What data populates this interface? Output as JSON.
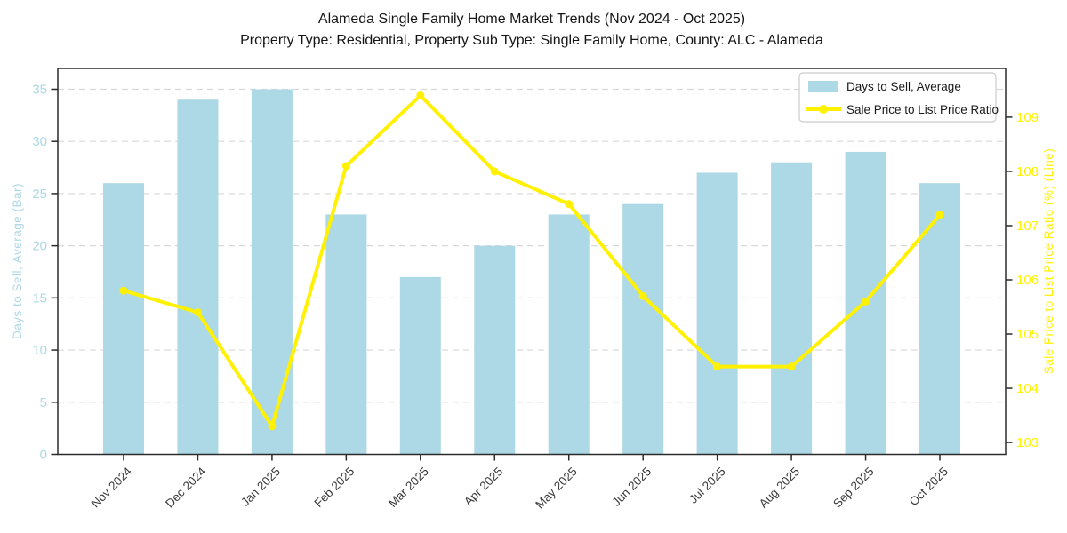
{
  "title": {
    "line1": "Alameda Single Family Home Market Trends (Nov 2024 - Oct 2025)",
    "line2": "Property Type: Residential, Property Sub Type: Single Family Home, County: ALC - Alameda"
  },
  "legend": {
    "position": "top-right",
    "items": [
      {
        "label": "Days to Sell, Average",
        "marker": "bar-swatch"
      },
      {
        "label": "Sale Price to List Price Ratio",
        "marker": "line-marker"
      }
    ]
  },
  "colors": {
    "bar": "#ADD8E6",
    "line": "#FFF100",
    "grid": "#D8D8D8",
    "spine": "#2B2B2B",
    "left_text": "#ADD8E6",
    "right_text": "#FFF100",
    "xtick_text": "#3A3A3A",
    "title_text": "#151515",
    "legend_border": "#CCCCCC"
  },
  "chart_data": {
    "type": "combo-bar-line",
    "categories": [
      "Nov 2024",
      "Dec 2024",
      "Jan 2025",
      "Feb 2025",
      "Mar 2025",
      "Apr 2025",
      "May 2025",
      "Jun 2025",
      "Jul 2025",
      "Aug 2025",
      "Sep 2025",
      "Oct 2025"
    ],
    "series": [
      {
        "name": "Days to Sell, Average",
        "type": "bar",
        "axis": "left",
        "color": "#ADD8E6",
        "values": [
          26,
          34,
          35,
          23,
          17,
          20,
          23,
          24,
          27,
          28,
          29,
          26
        ]
      },
      {
        "name": "Sale Price to List Price Ratio",
        "type": "line",
        "axis": "right",
        "color": "#FFF100",
        "values": [
          105.8,
          105.4,
          103.3,
          108.1,
          109.4,
          108.0,
          107.4,
          105.7,
          104.4,
          104.4,
          105.6,
          107.2
        ]
      }
    ],
    "left_axis": {
      "label": "Days to Sell, Average (Bar)",
      "ticks": [
        0,
        5,
        10,
        15,
        20,
        25,
        30,
        35
      ],
      "range": [
        0,
        37
      ]
    },
    "right_axis": {
      "label": "Sale Price to List Price Ratio (%) (Line)",
      "ticks": [
        103,
        104,
        105,
        106,
        107,
        108,
        109
      ],
      "range": [
        102.78,
        109.9
      ]
    },
    "x_axis": {
      "tick_rotation_deg": -45
    },
    "grid": {
      "horizontal": true,
      "style": "dashed"
    }
  }
}
